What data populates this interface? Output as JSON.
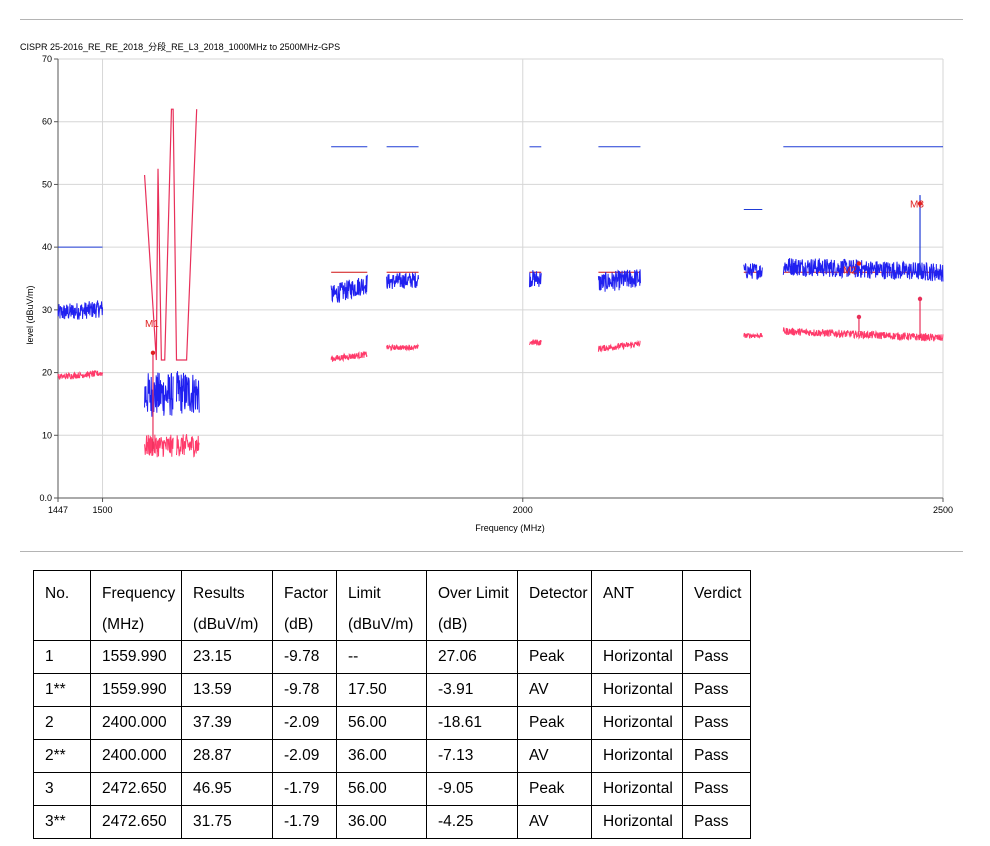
{
  "chart_data": {
    "type": "line",
    "title": "CISPR 25-2016_RE_RE_2018_分段_RE_L3_2018_1000MHz to 2500MHz-GPS",
    "xlabel": "Frequency (MHz)",
    "ylabel": "level (dBuV/m)",
    "xlim": [
      1447,
      2500
    ],
    "ylim": [
      0,
      70
    ],
    "x_ticks": [
      1447,
      1500,
      2000,
      2500
    ],
    "x_tick_labels": [
      "1447",
      "1500",
      "2000",
      "2500"
    ],
    "x_grid": [
      1500,
      2000,
      2500
    ],
    "y_ticks": [
      0,
      10,
      20,
      30,
      40,
      50,
      60,
      70
    ],
    "y_tick_labels": [
      "0.0",
      "10",
      "20",
      "30",
      "40",
      "50",
      "60",
      "70"
    ],
    "grid": true,
    "series": [
      {
        "role": "peak-limit",
        "color": "#1f3bd6",
        "segments": [
          [
            [
              1447,
              40
            ],
            [
              1500,
              40
            ]
          ],
          [
            [
              1772,
              56
            ],
            [
              1815,
              56
            ]
          ],
          [
            [
              1838,
              56
            ],
            [
              1876,
              56
            ]
          ],
          [
            [
              2008,
              56
            ],
            [
              2022,
              56
            ]
          ],
          [
            [
              2090,
              56
            ],
            [
              2140,
              56
            ]
          ],
          [
            [
              2263,
              46
            ],
            [
              2285,
              46
            ]
          ],
          [
            [
              2310,
              56
            ],
            [
              2500,
              56
            ]
          ]
        ]
      },
      {
        "role": "av-limit",
        "color": "#d01010",
        "segments": [
          [
            [
              1772,
              36
            ],
            [
              1815,
              36
            ]
          ],
          [
            [
              1838,
              36
            ],
            [
              1876,
              36
            ]
          ],
          [
            [
              2008,
              36
            ],
            [
              2022,
              36
            ]
          ],
          [
            [
              2090,
              36
            ],
            [
              2140,
              36
            ]
          ],
          [
            [
              2263,
              36
            ],
            [
              2285,
              36
            ]
          ],
          [
            [
              2310,
              36
            ],
            [
              2500,
              36
            ]
          ]
        ]
      },
      {
        "role": "pulse-limit",
        "color": "#e8305a",
        "points": [
          [
            1550,
            51.5
          ],
          [
            1564,
            22
          ],
          [
            1566,
            52.5
          ],
          [
            1570,
            22
          ],
          [
            1574,
            22
          ],
          [
            1582,
            62
          ],
          [
            1584,
            62
          ],
          [
            1588,
            22
          ],
          [
            1600,
            22
          ],
          [
            1612,
            62
          ]
        ]
      },
      {
        "role": "peak-trace",
        "color": "#2020f0",
        "bands": [
          {
            "x": [
              1447,
              1500
            ],
            "center": [
              29.5,
              30.2
            ],
            "spread": 1.4
          },
          {
            "x": [
              1550,
              1584
            ],
            "center": [
              16.5,
              16.5
            ],
            "spread": 3.6
          },
          {
            "x": [
              1588,
              1615
            ],
            "center": [
              16.8,
              16.8
            ],
            "spread": 3.5
          },
          {
            "x": [
              1772,
              1815
            ],
            "center": [
              32.3,
              34.2
            ],
            "spread": 1.6
          },
          {
            "x": [
              1838,
              1876
            ],
            "center": [
              34.5,
              34.8
            ],
            "spread": 1.3
          },
          {
            "x": [
              2008,
              2022
            ],
            "center": [
              35.0,
              35.0
            ],
            "spread": 1.4
          },
          {
            "x": [
              2090,
              2140
            ],
            "center": [
              34.3,
              35.1
            ],
            "spread": 1.6
          },
          {
            "x": [
              2263,
              2285
            ],
            "center": [
              36.2,
              36.2
            ],
            "spread": 1.3
          },
          {
            "x": [
              2310,
              2500
            ],
            "center": [
              37.0,
              36.0
            ],
            "spread": 1.5
          }
        ]
      },
      {
        "role": "av-trace",
        "color": "#ff3a6a",
        "bands": [
          {
            "x": [
              1447,
              1500
            ],
            "center": [
              19.3,
              19.9
            ],
            "spread": 0.5
          },
          {
            "x": [
              1550,
              1584
            ],
            "center": [
              8.3,
              8.3
            ],
            "spread": 1.8
          },
          {
            "x": [
              1588,
              1615
            ],
            "center": [
              8.4,
              8.4
            ],
            "spread": 1.8
          },
          {
            "x": [
              1772,
              1815
            ],
            "center": [
              22.2,
              22.9
            ],
            "spread": 0.5
          },
          {
            "x": [
              1838,
              1876
            ],
            "center": [
              24.0,
              24.0
            ],
            "spread": 0.4
          },
          {
            "x": [
              2008,
              2022
            ],
            "center": [
              24.8,
              24.8
            ],
            "spread": 0.5
          },
          {
            "x": [
              2090,
              2140
            ],
            "center": [
              23.8,
              24.6
            ],
            "spread": 0.5
          },
          {
            "x": [
              2263,
              2285
            ],
            "center": [
              25.9,
              25.9
            ],
            "spread": 0.4
          },
          {
            "x": [
              2310,
              2500
            ],
            "center": [
              26.6,
              25.5
            ],
            "spread": 0.6
          }
        ]
      }
    ],
    "markers": [
      {
        "label": "M1",
        "x": 1559.99,
        "y": 23.15,
        "color": "#e02020"
      },
      {
        "label": "M2",
        "x": 2400.0,
        "y": 37.39,
        "color": "#e02020"
      },
      {
        "label": "M3",
        "x": 2472.65,
        "y": 46.95,
        "color": "#e02020"
      }
    ],
    "spikes": [
      {
        "x": 1559.99,
        "from": 7.5,
        "to": 23.15,
        "color": "#e8305a"
      },
      {
        "x": 2400.0,
        "from": 26.5,
        "to": 28.87,
        "color": "#e8305a"
      },
      {
        "x": 2472.65,
        "from": 35.5,
        "to": 48.3,
        "color": "#1f3bd6"
      },
      {
        "x": 2472.65,
        "from": 25.5,
        "to": 31.75,
        "color": "#e8305a"
      }
    ]
  },
  "table": {
    "headers": [
      [
        "No.",
        ""
      ],
      [
        "Frequency",
        "(MHz)"
      ],
      [
        "Results",
        "(dBuV/m)"
      ],
      [
        "Factor",
        "(dB)"
      ],
      [
        "Limit",
        "(dBuV/m)"
      ],
      [
        "Over Limit",
        "(dB)"
      ],
      [
        "Detector",
        ""
      ],
      [
        "ANT",
        ""
      ],
      [
        "Verdict",
        ""
      ]
    ],
    "rows": [
      [
        "1",
        "1559.990",
        "23.15",
        "-9.78",
        "--",
        "27.06",
        "Peak",
        "Horizontal",
        "Pass"
      ],
      [
        "1**",
        "1559.990",
        "13.59",
        "-9.78",
        "17.50",
        "-3.91",
        "AV",
        "Horizontal",
        "Pass"
      ],
      [
        "2",
        "2400.000",
        "37.39",
        "-2.09",
        "56.00",
        "-18.61",
        "Peak",
        "Horizontal",
        "Pass"
      ],
      [
        "2**",
        "2400.000",
        "28.87",
        "-2.09",
        "36.00",
        "-7.13",
        "AV",
        "Horizontal",
        "Pass"
      ],
      [
        "3",
        "2472.650",
        "46.95",
        "-1.79",
        "56.00",
        "-9.05",
        "Peak",
        "Horizontal",
        "Pass"
      ],
      [
        "3**",
        "2472.650",
        "31.75",
        "-1.79",
        "36.00",
        "-4.25",
        "AV",
        "Horizontal",
        "Pass"
      ]
    ]
  }
}
